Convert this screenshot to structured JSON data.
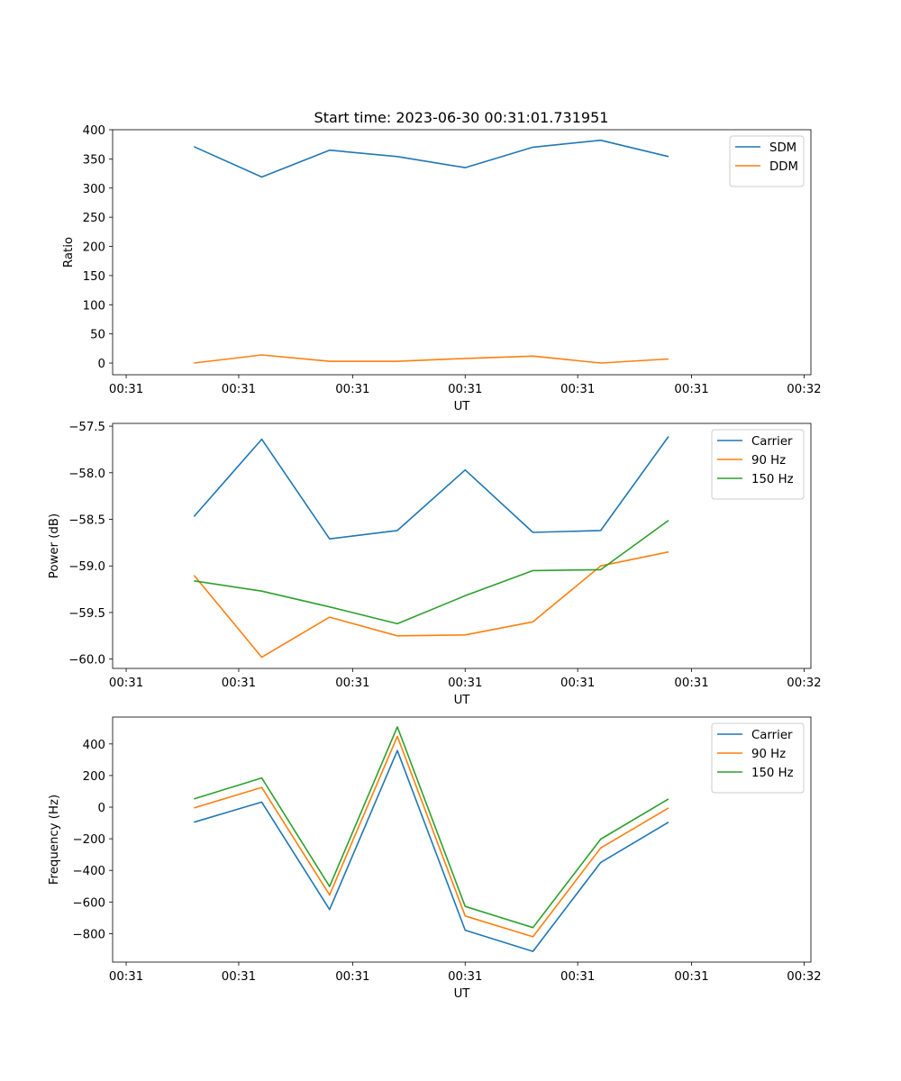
{
  "figure": {
    "title": "Start time: 2023-06-30 00:31:01.731951"
  },
  "chart_data": [
    {
      "type": "line",
      "xlabel": "UT",
      "ylabel": "Ratio",
      "x_tick_labels": [
        "00:31",
        "00:31",
        "00:31",
        "00:31",
        "00:31",
        "00:31",
        "00:32"
      ],
      "x": [
        0.5,
        1,
        1.5,
        2,
        2.5,
        3,
        3.5,
        4
      ],
      "xlim": [
        -0.1,
        5.05
      ],
      "x_ticks": [
        0,
        0.83,
        1.67,
        2.5,
        3.33,
        4.17,
        5
      ],
      "ylim": [
        -20,
        400
      ],
      "y_ticks": [
        0,
        50,
        100,
        150,
        200,
        250,
        300,
        350,
        400
      ],
      "y_tick_labels": [
        "0",
        "50",
        "100",
        "150",
        "200",
        "250",
        "300",
        "350",
        "400"
      ],
      "legend_position": "top-right",
      "series": [
        {
          "name": "SDM",
          "color": "#1f77b4",
          "values": [
            371,
            319,
            365,
            354,
            335,
            370,
            382,
            354
          ]
        },
        {
          "name": "DDM",
          "color": "#ff7f0e",
          "values": [
            0,
            14,
            3,
            3,
            8,
            12,
            0,
            7
          ]
        }
      ]
    },
    {
      "type": "line",
      "xlabel": "UT",
      "ylabel": "Power (dB)",
      "x_tick_labels": [
        "00:31",
        "00:31",
        "00:31",
        "00:31",
        "00:31",
        "00:31",
        "00:32"
      ],
      "x": [
        0.5,
        1,
        1.5,
        2,
        2.5,
        3,
        3.5,
        4
      ],
      "xlim": [
        -0.1,
        5.05
      ],
      "x_ticks": [
        0,
        0.83,
        1.67,
        2.5,
        3.33,
        4.17,
        5
      ],
      "ylim": [
        -60.1,
        -57.47
      ],
      "y_ticks": [
        -60.0,
        -59.5,
        -59.0,
        -58.5,
        -58.0,
        -57.5
      ],
      "y_tick_labels": [
        "−60.0",
        "−59.5",
        "−59.0",
        "−58.5",
        "−58.0",
        "−57.5"
      ],
      "legend_position": "top-right",
      "series": [
        {
          "name": "Carrier",
          "color": "#1f77b4",
          "values": [
            -58.47,
            -57.64,
            -58.71,
            -58.62,
            -57.97,
            -58.64,
            -58.62,
            -57.61
          ]
        },
        {
          "name": "90 Hz",
          "color": "#ff7f0e",
          "values": [
            -59.1,
            -59.98,
            -59.55,
            -59.75,
            -59.74,
            -59.6,
            -59.0,
            -58.85
          ]
        },
        {
          "name": "150 Hz",
          "color": "#2ca02c",
          "values": [
            -59.16,
            -59.27,
            -59.44,
            -59.62,
            -59.32,
            -59.05,
            -59.04,
            -58.51
          ]
        }
      ]
    },
    {
      "type": "line",
      "xlabel": "UT",
      "ylabel": "Frequency (Hz)",
      "x_tick_labels": [
        "00:31",
        "00:31",
        "00:31",
        "00:31",
        "00:31",
        "00:31",
        "00:32"
      ],
      "x": [
        0.5,
        1,
        1.5,
        2,
        2.5,
        3,
        3.5,
        4
      ],
      "xlim": [
        -0.1,
        5.05
      ],
      "x_ticks": [
        0,
        0.83,
        1.67,
        2.5,
        3.33,
        4.17,
        5
      ],
      "ylim": [
        -980,
        570
      ],
      "y_ticks": [
        -800,
        -600,
        -400,
        -200,
        0,
        200,
        400
      ],
      "y_tick_labels": [
        "−800",
        "−600",
        "−400",
        "−200",
        "0",
        "200",
        "400"
      ],
      "legend_position": "top-right",
      "series": [
        {
          "name": "Carrier",
          "color": "#1f77b4",
          "values": [
            -95,
            32,
            -648,
            358,
            -778,
            -912,
            -350,
            -95
          ]
        },
        {
          "name": "90 Hz",
          "color": "#ff7f0e",
          "values": [
            -5,
            125,
            -555,
            448,
            -688,
            -820,
            -258,
            -5
          ]
        },
        {
          "name": "150 Hz",
          "color": "#2ca02c",
          "values": [
            52,
            185,
            -502,
            508,
            -628,
            -762,
            -202,
            52
          ]
        }
      ]
    }
  ]
}
